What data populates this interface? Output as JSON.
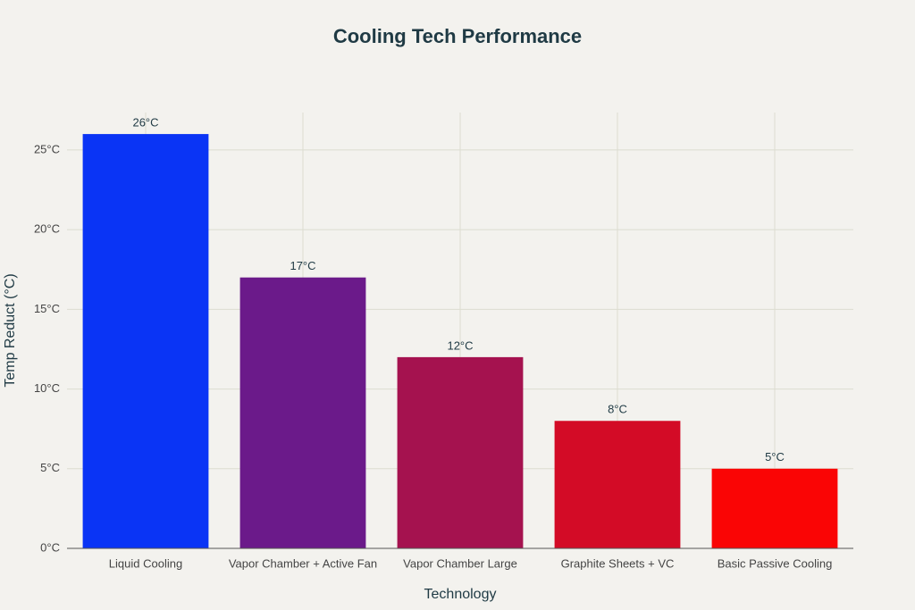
{
  "chart_data": {
    "type": "bar",
    "title": "Cooling Tech Performance",
    "x_label": "Technology",
    "y_label": "Temp Reduct (°C)",
    "categories": [
      "Liquid Cooling",
      "Vapor Chamber + Active Fan",
      "Vapor Chamber Large",
      "Graphite Sheets + VC",
      "Basic Passive Cooling"
    ],
    "values": [
      26,
      17,
      12,
      8,
      5
    ],
    "value_labels": [
      "26°C",
      "17°C",
      "12°C",
      "8°C",
      "5°C"
    ],
    "colors": [
      "#0a34f5",
      "#6b1a8a",
      "#a5124f",
      "#d30b26",
      "#fa0505"
    ],
    "ylim": [
      0,
      27.35
    ],
    "yticks": [
      {
        "value": 0,
        "label": "0°C"
      },
      {
        "value": 5,
        "label": "5°C"
      },
      {
        "value": 10,
        "label": "10°C"
      },
      {
        "value": 15,
        "label": "15°C"
      },
      {
        "value": 20,
        "label": "20°C"
      },
      {
        "value": 25,
        "label": "25°C"
      }
    ],
    "grid": true
  }
}
